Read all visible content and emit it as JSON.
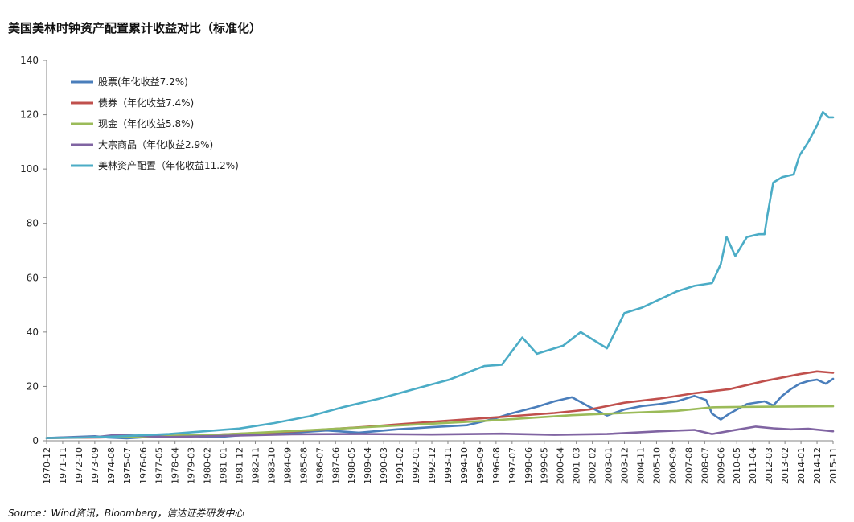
{
  "chart_data": {
    "type": "line",
    "title": "美国美林时钟资产配置累计收益对比（标准化）",
    "source": "Source：Wind资讯，Bloomberg，信达证券研发中心",
    "xlabel": "",
    "ylabel": "",
    "ylim": [
      0,
      140
    ],
    "yticks": [
      0,
      20,
      40,
      60,
      80,
      100,
      120,
      140
    ],
    "xlim": [
      0,
      539
    ],
    "legend_position": "top-left",
    "grid": false,
    "x_tick_labels": [
      "1970-12",
      "1971-11",
      "1972-10",
      "1973-09",
      "1974-08",
      "1975-07",
      "1976-06",
      "1977-05",
      "1978-04",
      "1979-03",
      "1980-02",
      "1981-01",
      "1981-12",
      "1982-11",
      "1983-10",
      "1984-09",
      "1985-08",
      "1986-07",
      "1987-06",
      "1988-05",
      "1989-04",
      "1990-03",
      "1991-02",
      "1992-01",
      "1992-12",
      "1993-11",
      "1994-10",
      "1995-09",
      "1996-08",
      "1997-07",
      "1998-06",
      "1999-05",
      "2000-04",
      "2001-03",
      "2002-02",
      "2003-01",
      "2003-12",
      "2004-11",
      "2005-10",
      "2006-09",
      "2007-08",
      "2008-07",
      "2009-06",
      "2010-05",
      "2011-04",
      "2012-03",
      "2013-02",
      "2014-01",
      "2014-12",
      "2015-11"
    ],
    "series": [
      {
        "name": "股票(年化收益7.2%)",
        "color": "#4a7ebb",
        "x": [
          0,
          33,
          42,
          55,
          72,
          96,
          116,
          144,
          168,
          192,
          214,
          240,
          264,
          288,
          306,
          318,
          336,
          348,
          360,
          372,
          384,
          396,
          408,
          420,
          432,
          444,
          452,
          456,
          462,
          468,
          474,
          480,
          492,
          498,
          504,
          510,
          516,
          522,
          528,
          534,
          539
        ],
        "values": [
          1.0,
          1.7,
          1.2,
          0.9,
          1.5,
          1.8,
          1.3,
          2.5,
          3.0,
          3.8,
          3.0,
          4.2,
          5.0,
          5.7,
          8.0,
          10.0,
          12.5,
          14.5,
          16.0,
          12.5,
          9.3,
          11.5,
          12.8,
          13.5,
          14.5,
          16.5,
          15.0,
          10.0,
          7.8,
          10.0,
          11.8,
          13.5,
          14.5,
          13.0,
          16.5,
          19.0,
          21.0,
          22.0,
          22.5,
          21.0,
          22.8
        ]
      },
      {
        "name": "债券（年化收益7.4%)",
        "color": "#c0504d",
        "x": [
          0,
          36,
          60,
          120,
          168,
          216,
          264,
          312,
          348,
          372,
          396,
          420,
          444,
          468,
          492,
          516,
          528,
          539
        ],
        "values": [
          1.0,
          1.2,
          1.5,
          2.3,
          3.4,
          5.0,
          7.0,
          8.8,
          10.2,
          11.5,
          14.0,
          15.5,
          17.5,
          19.0,
          22.0,
          24.5,
          25.5,
          25.0
        ]
      },
      {
        "name": "现金（年化收益5.8%)",
        "color": "#9bbb59",
        "x": [
          0,
          60,
          120,
          180,
          240,
          300,
          360,
          396,
          432,
          456,
          480,
          539
        ],
        "values": [
          1.0,
          1.5,
          2.3,
          3.9,
          5.6,
          7.3,
          9.4,
          10.2,
          11.0,
          12.3,
          12.5,
          12.7
        ]
      },
      {
        "name": "大宗商品（年化收益2.9%)",
        "color": "#8064a2",
        "x": [
          0,
          36,
          48,
          84,
          120,
          168,
          216,
          264,
          312,
          348,
          384,
          420,
          444,
          456,
          470,
          486,
          498,
          510,
          522,
          539
        ],
        "values": [
          1.0,
          1.5,
          2.2,
          1.4,
          1.8,
          2.4,
          2.5,
          2.3,
          2.6,
          2.2,
          2.5,
          3.5,
          4.0,
          2.5,
          3.8,
          5.2,
          4.6,
          4.2,
          4.4,
          3.5
        ]
      },
      {
        "name": "美林资产配置（年化收益11.2%)",
        "color": "#4bacc6",
        "x": [
          0,
          24,
          48,
          84,
          108,
          132,
          156,
          180,
          204,
          228,
          252,
          276,
          300,
          312,
          326,
          336,
          354,
          366,
          384,
          396,
          408,
          420,
          432,
          444,
          456,
          462,
          466,
          472,
          480,
          488,
          492,
          494,
          498,
          504,
          512,
          516,
          522,
          528,
          532,
          536,
          539
        ],
        "values": [
          1.0,
          1.2,
          1.6,
          2.5,
          3.5,
          4.5,
          6.5,
          9.0,
          12.5,
          15.5,
          19.0,
          22.5,
          27.5,
          28.0,
          38.0,
          32.0,
          35.0,
          40.0,
          34.0,
          47.0,
          49.0,
          52.0,
          55.0,
          57.0,
          58.0,
          65.0,
          75.0,
          68.0,
          75.0,
          76.0,
          76.0,
          83.0,
          95.0,
          97.0,
          98.0,
          105.0,
          110.0,
          116.0,
          121.0,
          119.0,
          119.0
        ]
      }
    ]
  }
}
